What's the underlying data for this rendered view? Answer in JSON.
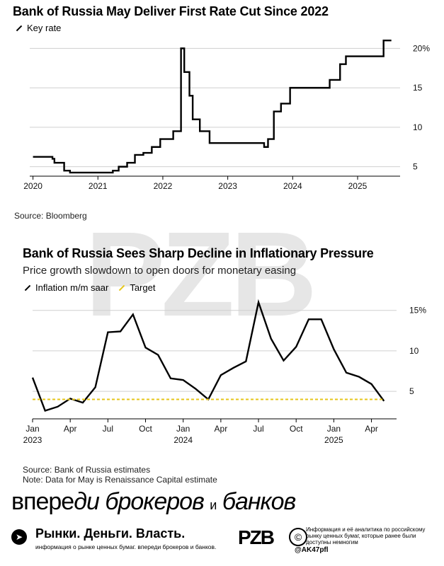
{
  "watermark": "PZB",
  "chart_data": [
    {
      "type": "line",
      "title": "Bank of Russia May Deliver First Rate Cut Since 2022",
      "subtitle": "",
      "source": "Source: Bloomberg",
      "xlabel": "",
      "ylabel": "",
      "xlim": [
        2019.95,
        2025.6
      ],
      "ylim": [
        3.8,
        21.2
      ],
      "x_ticks": [
        2020,
        2021,
        2022,
        2023,
        2024,
        2025
      ],
      "x_tick_labels": [
        "2020",
        "2021",
        "2022",
        "2023",
        "2024",
        "2025"
      ],
      "y_ticks": [
        5,
        10,
        15,
        20
      ],
      "y_tick_labels": [
        "5",
        "10",
        "15",
        "20%"
      ],
      "grid": true,
      "legend_position": "top-left",
      "series": [
        {
          "name": "Key rate",
          "color": "#000000",
          "step": true,
          "x": [
            2020.0,
            2020.3,
            2020.33,
            2020.48,
            2020.57,
            2021.23,
            2021.32,
            2021.45,
            2021.57,
            2021.7,
            2021.83,
            2021.96,
            2022.16,
            2022.28,
            2022.33,
            2022.41,
            2022.46,
            2022.57,
            2022.72,
            2023.56,
            2023.62,
            2023.71,
            2023.82,
            2023.96,
            2024.57,
            2024.73,
            2024.82,
            2025.4
          ],
          "values": [
            6.25,
            6.0,
            5.5,
            4.5,
            4.25,
            4.5,
            5.0,
            5.5,
            6.5,
            6.75,
            7.5,
            8.5,
            9.5,
            20.0,
            17.0,
            14.0,
            11.0,
            9.5,
            8.0,
            7.5,
            8.5,
            12.0,
            13.0,
            15.0,
            16.0,
            18.0,
            19.0,
            21.0
          ]
        }
      ]
    },
    {
      "type": "line",
      "title": "Bank of Russia Sees Sharp Decline in Inflationary Pressure",
      "subtitle": "Price growth slowdown to open doors for monetary easing",
      "source": "Source: Bank of Russia estimates",
      "note": "Note: Data for May is Renaissance Capital estimate",
      "xlabel": "",
      "ylabel": "",
      "xlim": [
        0,
        29
      ],
      "ylim": [
        1.6,
        15.5
      ],
      "x_ticks": [
        0,
        3,
        6,
        9,
        12,
        15,
        18,
        21,
        24,
        27
      ],
      "x_tick_labels": [
        "Jan",
        "Apr",
        "Jul",
        "Oct",
        "Jan",
        "Apr",
        "Jul",
        "Oct",
        "Jan",
        "Apr"
      ],
      "x_year_labels": [
        {
          "x": 0,
          "label": "2023"
        },
        {
          "x": 12,
          "label": "2024"
        },
        {
          "x": 24,
          "label": "2025"
        }
      ],
      "y_ticks": [
        5,
        10,
        15
      ],
      "y_tick_labels": [
        "5",
        "10",
        "15%"
      ],
      "grid": true,
      "legend_position": "top-left",
      "series": [
        {
          "name": "Inflation m/m saar",
          "color": "#000000",
          "x": [
            0,
            1,
            2,
            3,
            4,
            5,
            6,
            7,
            8,
            9,
            10,
            11,
            12,
            13,
            14,
            15,
            16,
            17,
            18,
            19,
            20,
            21,
            22,
            23,
            24,
            25,
            26,
            27,
            28
          ],
          "values": [
            6.7,
            2.6,
            3.1,
            4.1,
            3.6,
            5.5,
            12.3,
            12.4,
            14.5,
            10.4,
            9.5,
            6.6,
            6.4,
            5.3,
            4.0,
            7.0,
            7.9,
            8.7,
            16.0,
            11.5,
            8.8,
            10.5,
            13.9,
            13.9,
            10.2,
            7.3,
            6.8,
            5.9,
            3.8
          ]
        },
        {
          "name": "Target",
          "color": "#e6c619",
          "dashed": true,
          "x": [
            0,
            28
          ],
          "values": [
            4.0,
            4.0
          ]
        }
      ]
    }
  ],
  "banner": {
    "part1": "впере",
    "part2": "ди",
    "part3": "брокеров",
    "part4": "и",
    "part5": "банков"
  },
  "footer": {
    "telegram_icon": "telegram-icon",
    "title": "Рынки. Деньги. Власть.",
    "subtitle": "информация о рынке ценных бумаг. впереди брокеров и банков.",
    "logo": "PZB",
    "copyright_symbol": "©",
    "info": "Информация и её аналитика по российскому рынку ценных бумаг, которые ранее были доступны немногим",
    "handle": "@AK47pfl"
  }
}
